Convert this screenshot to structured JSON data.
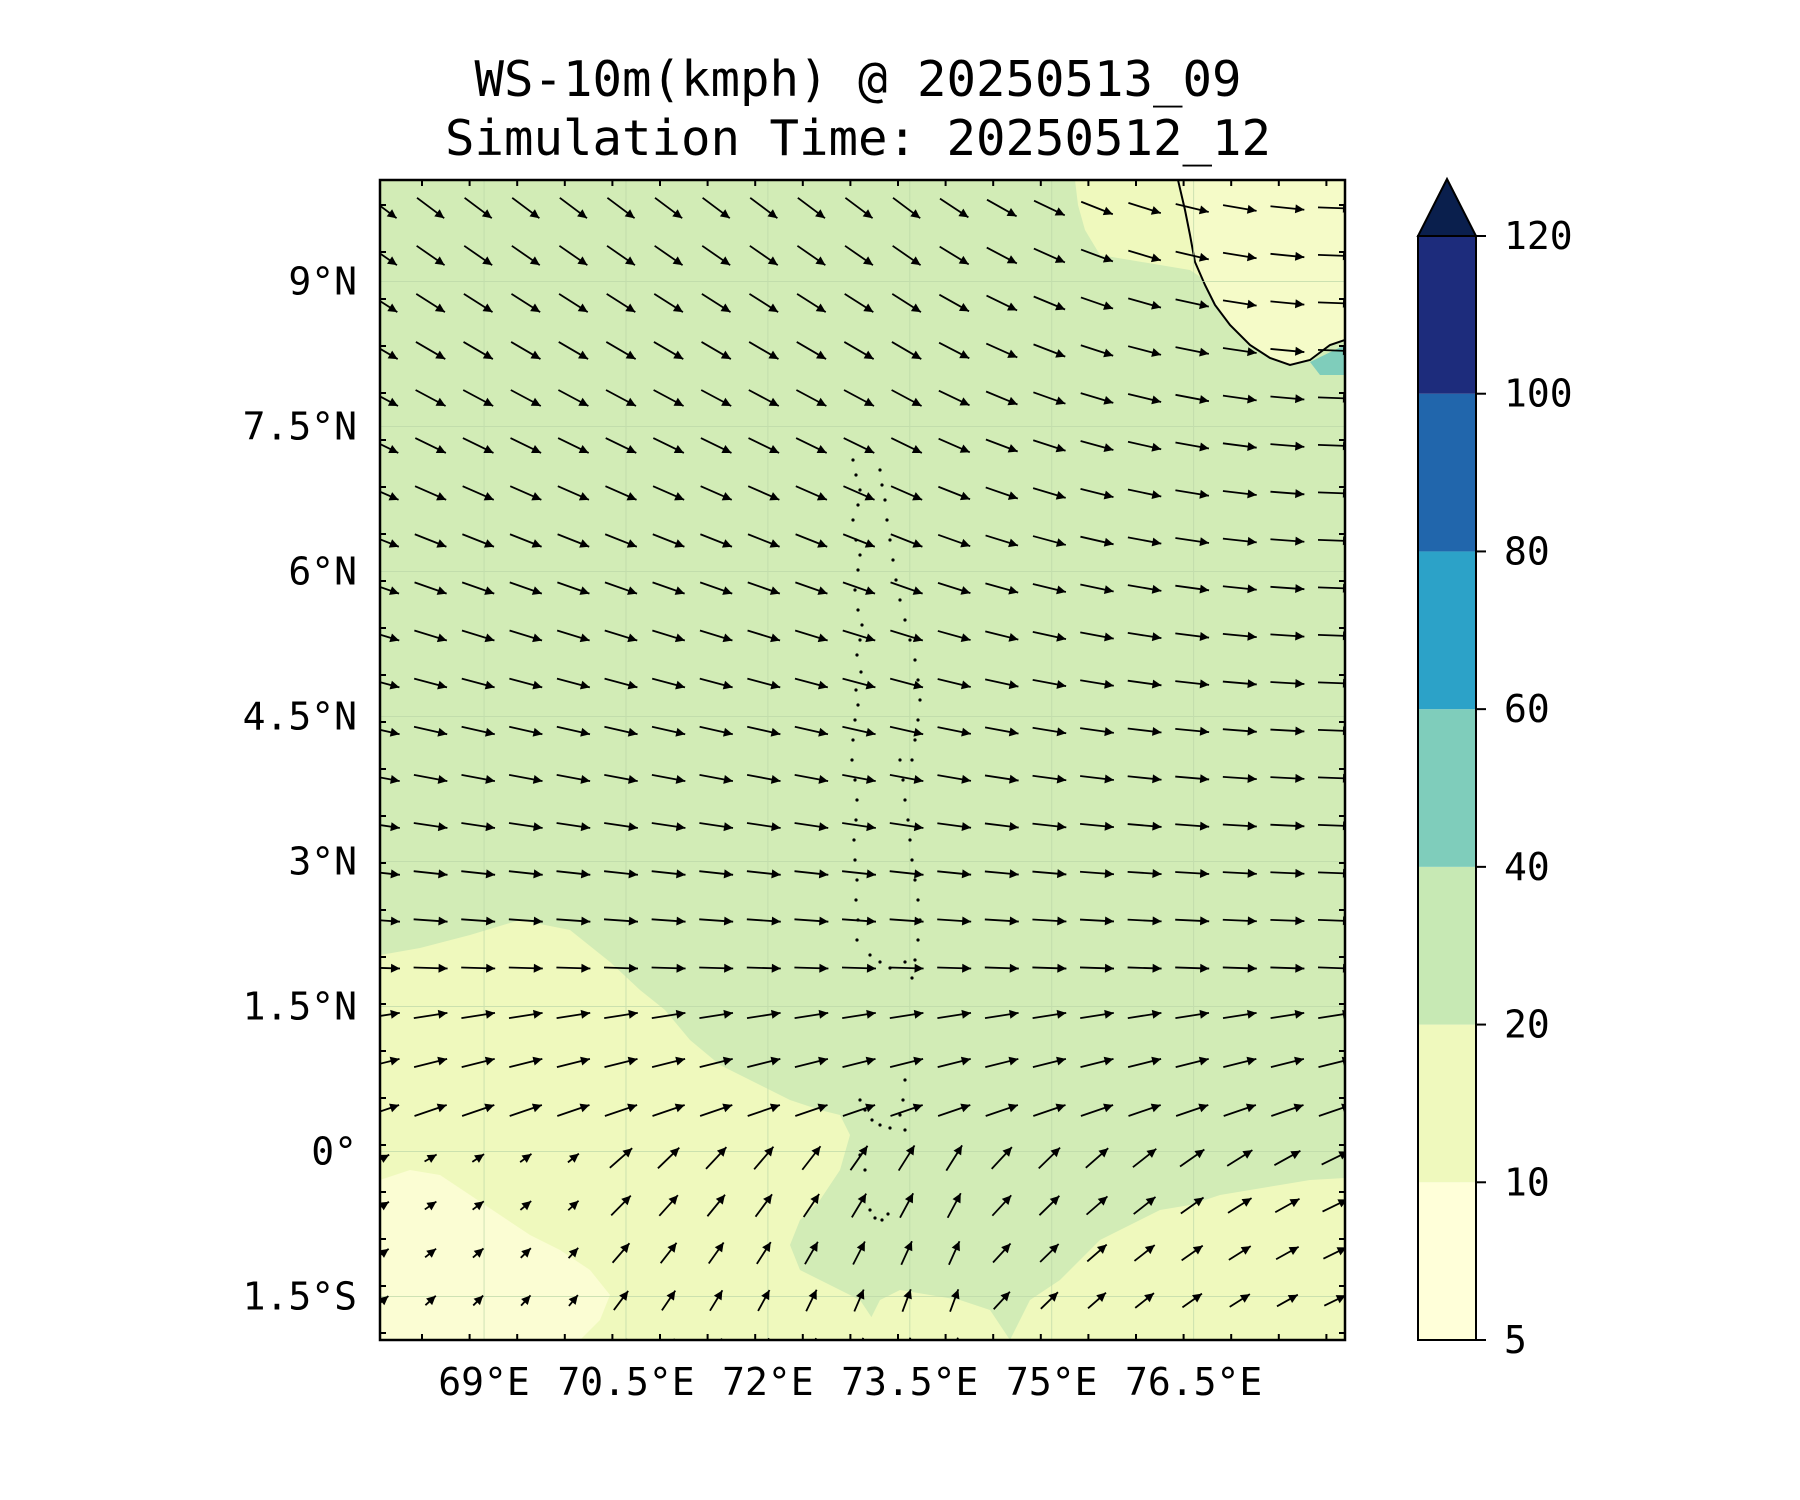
{
  "title": {
    "line1": "WS-10m(kmph) @ 20250513_09",
    "line2": "Simulation Time: 20250512_12"
  },
  "map": {
    "lon_range": [
      67.9,
      78.1
    ],
    "lat_range": [
      -1.95,
      10.05
    ],
    "x_ticks": [
      {
        "value": 69.0,
        "label": "69°E"
      },
      {
        "value": 70.5,
        "label": "70.5°E"
      },
      {
        "value": 72.0,
        "label": "72°E"
      },
      {
        "value": 73.5,
        "label": "73.5°E"
      },
      {
        "value": 75.0,
        "label": "75°E"
      },
      {
        "value": 76.5,
        "label": "76.5°E"
      }
    ],
    "y_ticks": [
      {
        "value": 9.0,
        "label": "9°N"
      },
      {
        "value": 7.5,
        "label": "7.5°N"
      },
      {
        "value": 6.0,
        "label": "6°N"
      },
      {
        "value": 4.5,
        "label": "4.5°N"
      },
      {
        "value": 3.0,
        "label": "3°N"
      },
      {
        "value": 1.5,
        "label": "1.5°N"
      },
      {
        "value": 0.0,
        "label": "0°"
      },
      {
        "value": -1.5,
        "label": "1.5°S"
      }
    ],
    "gridlines": true,
    "dominant_speed_band": "20-40 kmph"
  },
  "colorbar": {
    "levels": [
      5,
      10,
      20,
      40,
      60,
      80,
      100,
      120
    ],
    "colors": [
      "#ffffd9",
      "#eff9bd",
      "#c7e9b4",
      "#7fcdbb",
      "#2ca2c8",
      "#2166ac",
      "#1d2c7c"
    ],
    "extend_color": "#0a1f4d",
    "extend": "max",
    "labels": [
      "5",
      "10",
      "20",
      "40",
      "60",
      "80",
      "100",
      "120"
    ]
  },
  "colors": {
    "band_10_20": "#eff9bd",
    "band_5_10": "#fbfdd3",
    "band_20_40": "#d2ecb6",
    "band_40_60": "#7fcdbb",
    "arrow": "#000000"
  }
}
